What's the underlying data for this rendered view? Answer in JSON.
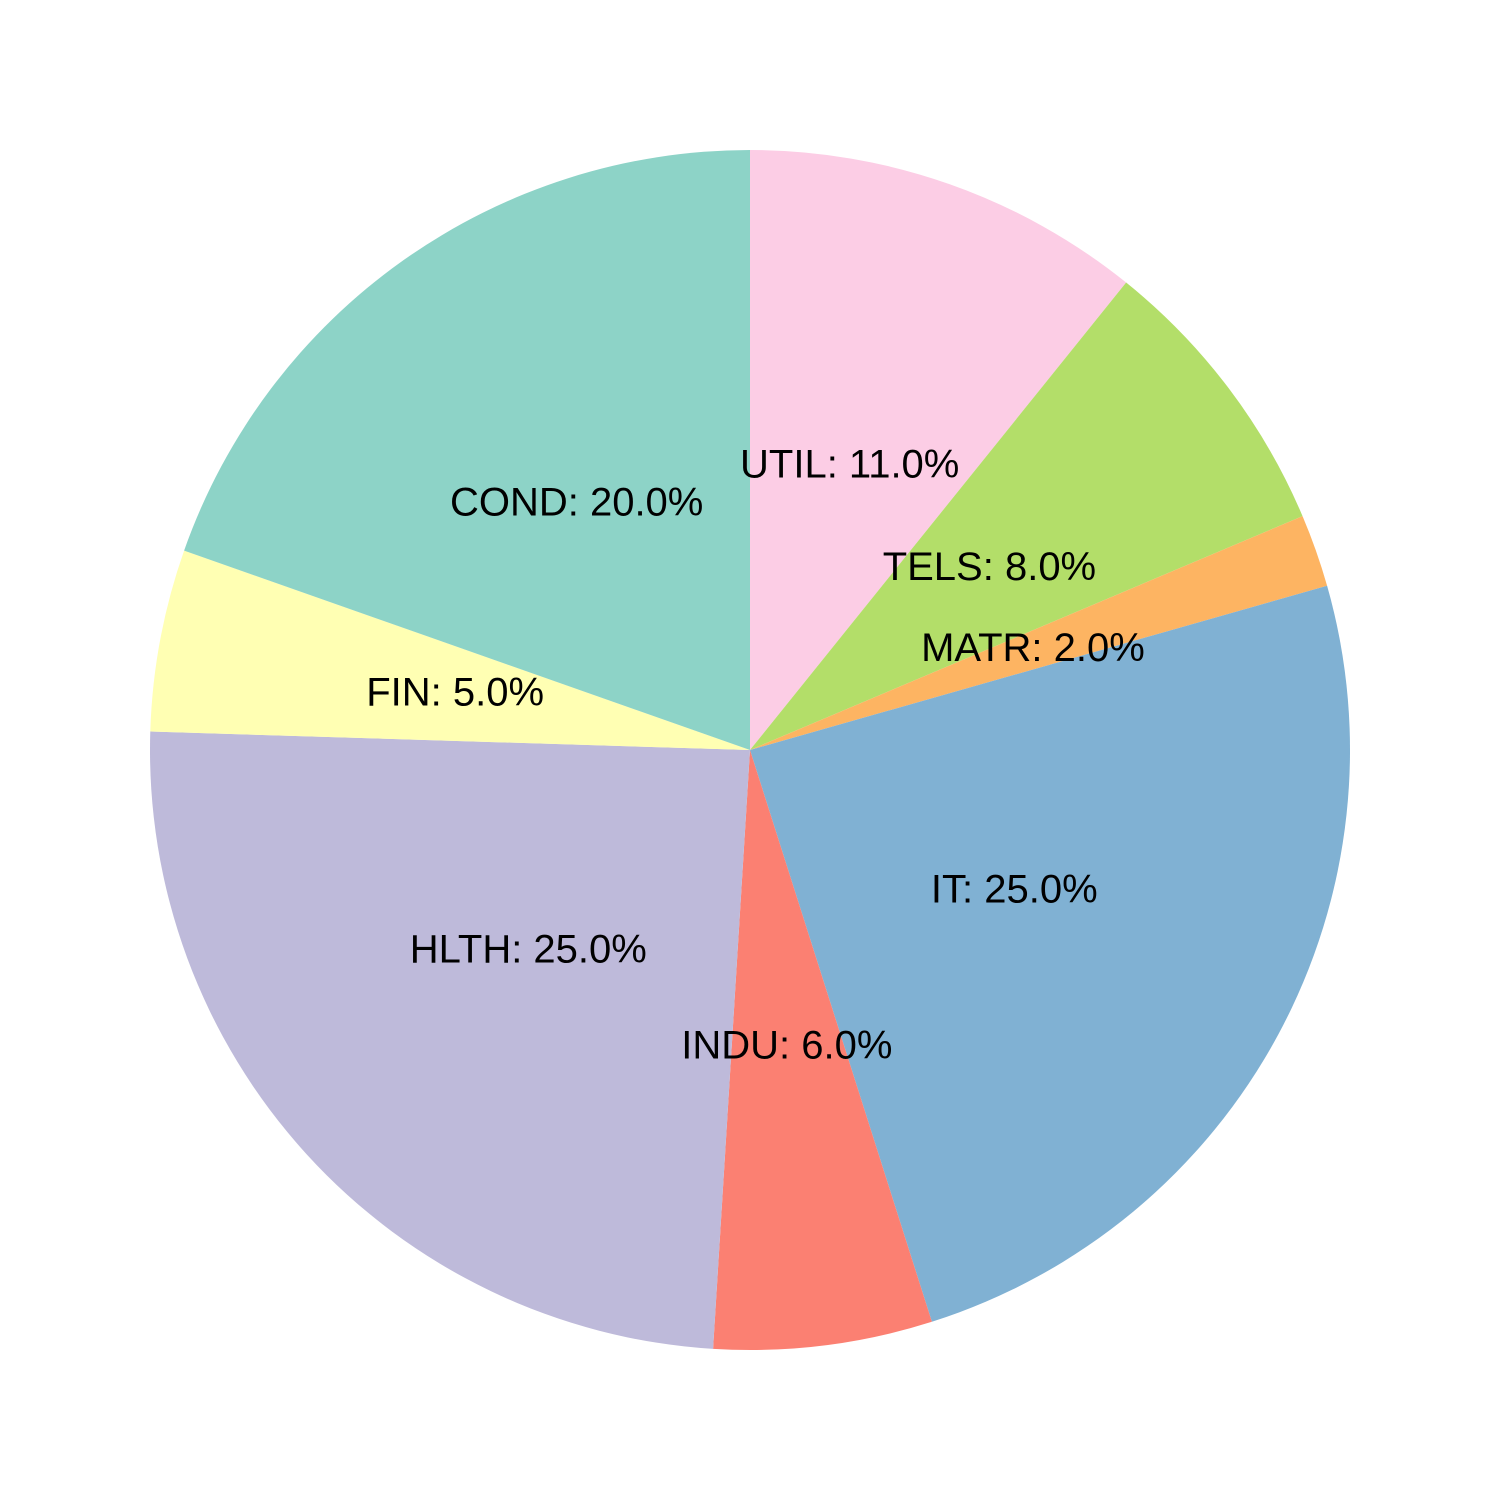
{
  "chart_data": {
    "type": "pie",
    "start_angle": "12 o'clock",
    "direction": "clockwise",
    "slices": [
      {
        "name": "UTIL",
        "value": 11.0,
        "label": "UTIL: 11.0%",
        "color": "#FCCDE5"
      },
      {
        "name": "TELS",
        "value": 8.0,
        "label": "TELS: 8.0%",
        "color": "#B3DE69"
      },
      {
        "name": "MATR",
        "value": 2.0,
        "label": "MATR: 2.0%",
        "color": "#FDB462"
      },
      {
        "name": "IT",
        "value": 25.0,
        "label": "IT: 25.0%",
        "color": "#80B1D3"
      },
      {
        "name": "INDU",
        "value": 6.0,
        "label": "INDU: 6.0%",
        "color": "#FB8072"
      },
      {
        "name": "HLTH",
        "value": 25.0,
        "label": "HLTH: 25.0%",
        "color": "#BEBADA"
      },
      {
        "name": "FIN",
        "value": 5.0,
        "label": "FIN: 5.0%",
        "color": "#FFFFB3"
      },
      {
        "name": "COND",
        "value": 20.0,
        "label": "COND: 20.0%",
        "color": "#8DD3C7"
      }
    ]
  }
}
